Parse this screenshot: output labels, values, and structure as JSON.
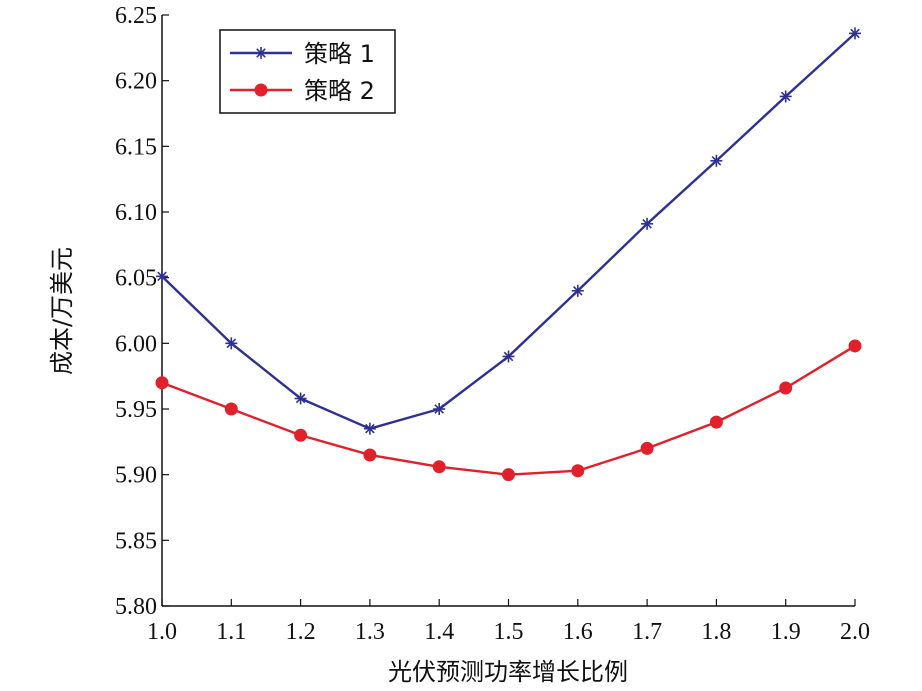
{
  "chart_data": {
    "type": "line",
    "title": "",
    "xlabel": "光伏预测功率增长比例",
    "ylabel": "成本/万美元",
    "x": [
      1.0,
      1.1,
      1.2,
      1.3,
      1.4,
      1.5,
      1.6,
      1.7,
      1.8,
      1.9,
      2.0
    ],
    "xticks": [
      "1.0",
      "1.1",
      "1.2",
      "1.3",
      "1.4",
      "1.5",
      "1.6",
      "1.7",
      "1.8",
      "1.9",
      "2.0"
    ],
    "yticks": [
      "5.80",
      "5.85",
      "5.90",
      "5.95",
      "6.00",
      "6.05",
      "6.10",
      "6.15",
      "6.20",
      "6.25"
    ],
    "xlim": [
      1.0,
      2.0
    ],
    "ylim": [
      5.8,
      6.25
    ],
    "grid": false,
    "legend_position": "top-left",
    "series": [
      {
        "name": "策略 1",
        "color": "#2e3192",
        "marker": "asterisk",
        "values": [
          6.051,
          6.0,
          5.958,
          5.935,
          5.95,
          5.99,
          6.04,
          6.091,
          6.139,
          6.188,
          6.236
        ]
      },
      {
        "name": "策略 2",
        "color": "#e0202a",
        "marker": "filled-circle",
        "values": [
          5.97,
          5.95,
          5.93,
          5.915,
          5.906,
          5.9,
          5.903,
          5.92,
          5.94,
          5.966,
          5.998
        ]
      }
    ]
  }
}
